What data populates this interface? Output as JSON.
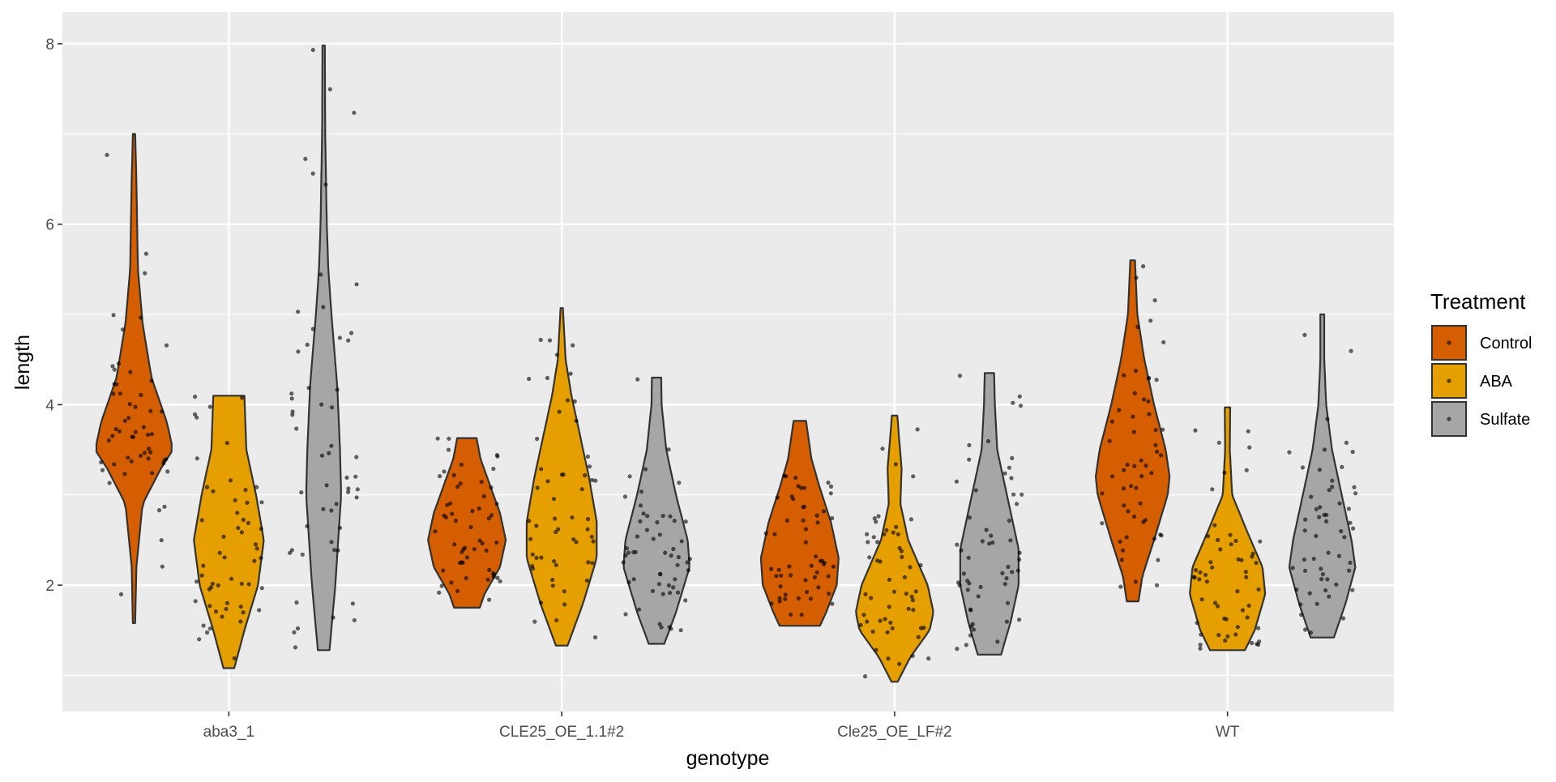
{
  "chart_data": {
    "type": "violin",
    "xlabel": "genotype",
    "ylabel": "length",
    "categories": [
      "aba3_1",
      "CLE25_OE_1.1#2",
      "Cle25_OE_LF#2",
      "WT"
    ],
    "y_ticks": [
      2,
      4,
      6,
      8
    ],
    "ylim": [
      0.6,
      8.35
    ],
    "grid": true,
    "legend_position": "right",
    "legend": {
      "title": "Treatment",
      "entries": [
        {
          "label": "Control",
          "color": "#D55E00"
        },
        {
          "label": "ABA",
          "color": "#E69F00"
        },
        {
          "label": "Sulfate",
          "color": "#A6A6A6"
        }
      ]
    },
    "series": [
      {
        "name": "Control",
        "color": "#D55E00",
        "violins": [
          {
            "category": "aba3_1",
            "min": 1.58,
            "max": 7.0,
            "profile": [
              [
                1.58,
                0.03
              ],
              [
                2.2,
                0.06
              ],
              [
                2.9,
                0.22
              ],
              [
                3.3,
                0.7
              ],
              [
                3.5,
                1.0
              ],
              [
                3.8,
                0.85
              ],
              [
                4.3,
                0.45
              ],
              [
                4.9,
                0.22
              ],
              [
                5.5,
                0.1
              ],
              [
                6.0,
                0.08
              ],
              [
                6.5,
                0.06
              ],
              [
                7.0,
                0.03
              ]
            ]
          },
          {
            "category": "CLE25_OE_1.1#2",
            "min": 1.75,
            "max": 3.63,
            "profile": [
              [
                1.75,
                0.33
              ],
              [
                1.9,
                0.45
              ],
              [
                2.2,
                0.85
              ],
              [
                2.5,
                1.0
              ],
              [
                2.8,
                0.85
              ],
              [
                3.1,
                0.6
              ],
              [
                3.4,
                0.35
              ],
              [
                3.63,
                0.25
              ]
            ]
          },
          {
            "category": "Cle25_OE_LF#2",
            "min": 1.55,
            "max": 3.82,
            "profile": [
              [
                1.55,
                0.52
              ],
              [
                1.7,
                0.68
              ],
              [
                2.0,
                0.95
              ],
              [
                2.3,
                1.0
              ],
              [
                2.7,
                0.8
              ],
              [
                3.1,
                0.5
              ],
              [
                3.4,
                0.3
              ],
              [
                3.82,
                0.16
              ]
            ]
          },
          {
            "category": "WT",
            "min": 1.82,
            "max": 5.6,
            "profile": [
              [
                1.82,
                0.15
              ],
              [
                2.1,
                0.25
              ],
              [
                2.5,
                0.55
              ],
              [
                3.0,
                0.9
              ],
              [
                3.2,
                0.95
              ],
              [
                3.5,
                0.85
              ],
              [
                4.0,
                0.55
              ],
              [
                4.5,
                0.3
              ],
              [
                5.0,
                0.12
              ],
              [
                5.6,
                0.06
              ]
            ]
          }
        ]
      },
      {
        "name": "ABA",
        "color": "#E69F00",
        "violins": [
          {
            "category": "aba3_1",
            "min": 1.08,
            "max": 4.1,
            "profile": [
              [
                1.08,
                0.14
              ],
              [
                1.5,
                0.4
              ],
              [
                2.0,
                0.75
              ],
              [
                2.5,
                0.9
              ],
              [
                3.0,
                0.7
              ],
              [
                3.5,
                0.45
              ],
              [
                4.1,
                0.4
              ]
            ]
          },
          {
            "category": "CLE25_OE_1.1#2",
            "min": 1.33,
            "max": 5.07,
            "profile": [
              [
                1.33,
                0.15
              ],
              [
                1.8,
                0.55
              ],
              [
                2.3,
                0.9
              ],
              [
                2.7,
                0.9
              ],
              [
                3.2,
                0.7
              ],
              [
                3.6,
                0.5
              ],
              [
                4.1,
                0.25
              ],
              [
                4.5,
                0.1
              ],
              [
                5.07,
                0.03
              ]
            ]
          },
          {
            "category": "Cle25_OE_LF#2",
            "min": 0.93,
            "max": 3.88,
            "profile": [
              [
                0.93,
                0.08
              ],
              [
                1.2,
                0.4
              ],
              [
                1.5,
                0.9
              ],
              [
                1.7,
                1.0
              ],
              [
                2.0,
                0.85
              ],
              [
                2.5,
                0.35
              ],
              [
                2.9,
                0.15
              ],
              [
                3.3,
                0.18
              ],
              [
                3.6,
                0.12
              ],
              [
                3.88,
                0.07
              ]
            ]
          },
          {
            "category": "WT",
            "min": 1.28,
            "max": 3.97,
            "profile": [
              [
                1.28,
                0.45
              ],
              [
                1.5,
                0.7
              ],
              [
                1.9,
                0.97
              ],
              [
                2.2,
                0.9
              ],
              [
                2.6,
                0.5
              ],
              [
                3.0,
                0.12
              ],
              [
                3.5,
                0.06
              ],
              [
                3.97,
                0.07
              ]
            ]
          }
        ]
      },
      {
        "name": "Sulfate",
        "color": "#A6A6A6",
        "violins": [
          {
            "category": "aba3_1",
            "min": 1.28,
            "max": 7.98,
            "profile": [
              [
                1.28,
                0.15
              ],
              [
                2.0,
                0.3
              ],
              [
                3.0,
                0.45
              ],
              [
                3.5,
                0.42
              ],
              [
                4.2,
                0.35
              ],
              [
                5.0,
                0.2
              ],
              [
                5.5,
                0.12
              ],
              [
                6.0,
                0.08
              ],
              [
                7.0,
                0.04
              ],
              [
                7.98,
                0.03
              ]
            ]
          },
          {
            "category": "CLE25_OE_1.1#2",
            "min": 1.35,
            "max": 4.3,
            "profile": [
              [
                1.35,
                0.2
              ],
              [
                1.7,
                0.5
              ],
              [
                2.2,
                0.85
              ],
              [
                2.5,
                0.8
              ],
              [
                3.0,
                0.5
              ],
              [
                3.5,
                0.25
              ],
              [
                4.0,
                0.13
              ],
              [
                4.3,
                0.12
              ]
            ]
          },
          {
            "category": "Cle25_OE_LF#2",
            "min": 1.23,
            "max": 4.35,
            "profile": [
              [
                1.23,
                0.3
              ],
              [
                1.6,
                0.55
              ],
              [
                2.0,
                0.75
              ],
              [
                2.4,
                0.75
              ],
              [
                3.0,
                0.45
              ],
              [
                3.5,
                0.2
              ],
              [
                4.0,
                0.14
              ],
              [
                4.35,
                0.12
              ]
            ]
          },
          {
            "category": "WT",
            "min": 1.42,
            "max": 5.0,
            "profile": [
              [
                1.42,
                0.3
              ],
              [
                1.8,
                0.6
              ],
              [
                2.2,
                0.85
              ],
              [
                2.5,
                0.75
              ],
              [
                3.0,
                0.5
              ],
              [
                3.5,
                0.25
              ],
              [
                4.0,
                0.1
              ],
              [
                4.5,
                0.05
              ],
              [
                5.0,
                0.05
              ]
            ]
          }
        ]
      }
    ]
  }
}
